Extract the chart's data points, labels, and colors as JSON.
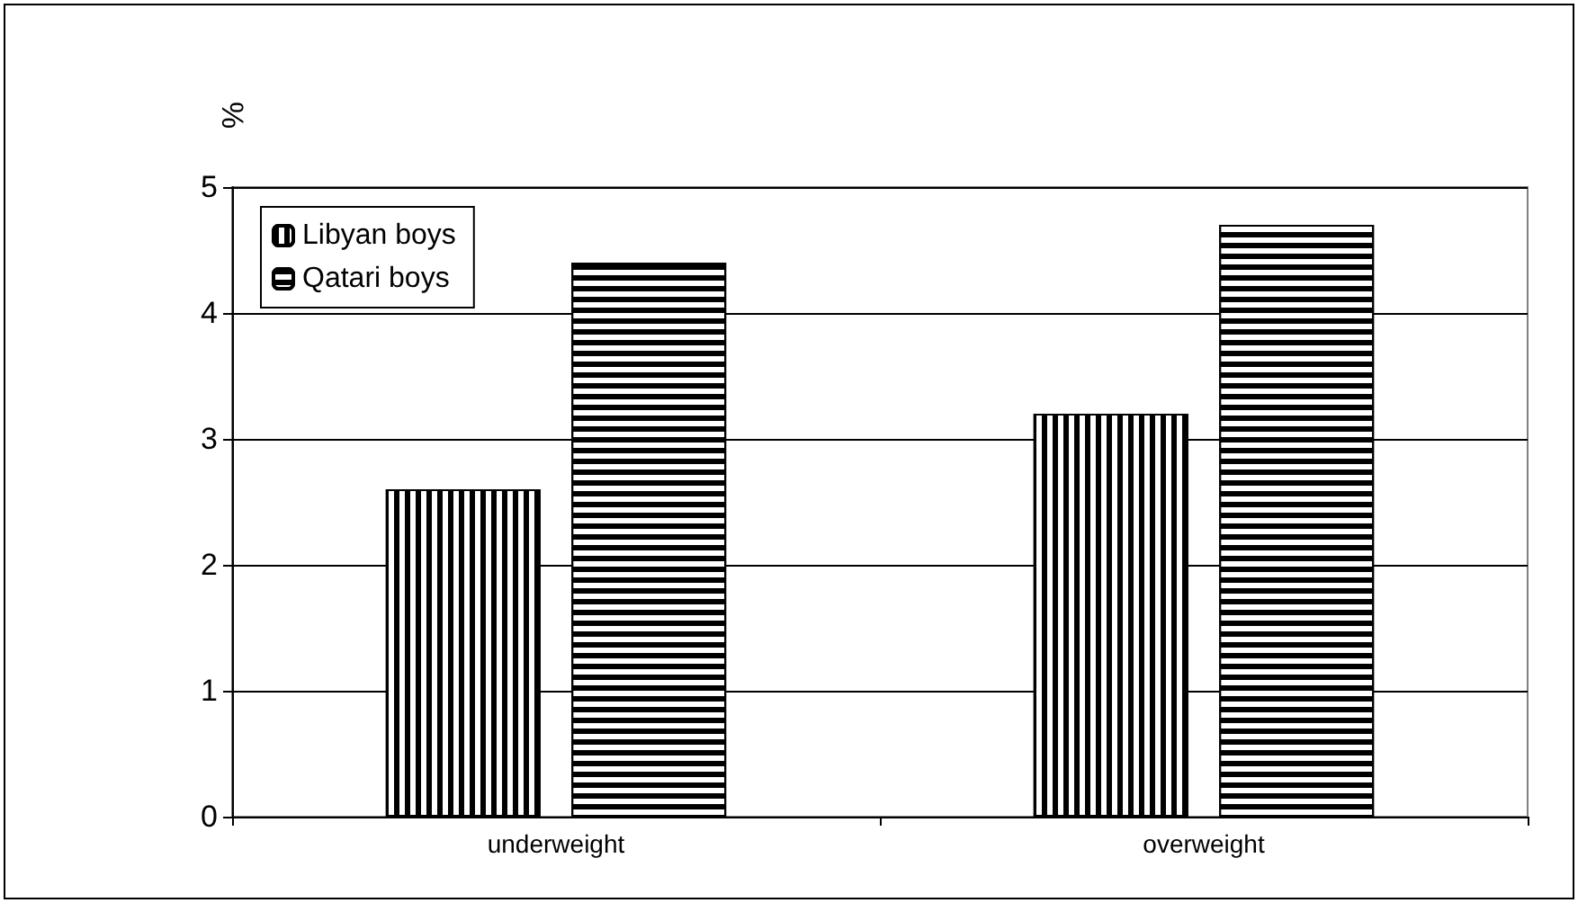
{
  "chart_data": {
    "type": "bar",
    "ylabel": "%",
    "categories": [
      "underweight",
      "overweight"
    ],
    "series": [
      {
        "name": "Libyan boys",
        "color": "#ffffff",
        "values": [
          2.6,
          3.2
        ]
      },
      {
        "name": "Qatari boys",
        "color": "#ffffff",
        "values": [
          4.4,
          4.7
        ]
      }
    ],
    "ylim": [
      0,
      5
    ],
    "yticks": [
      0,
      1,
      2,
      3,
      4,
      5
    ],
    "grid": "y",
    "legend": "top left"
  }
}
